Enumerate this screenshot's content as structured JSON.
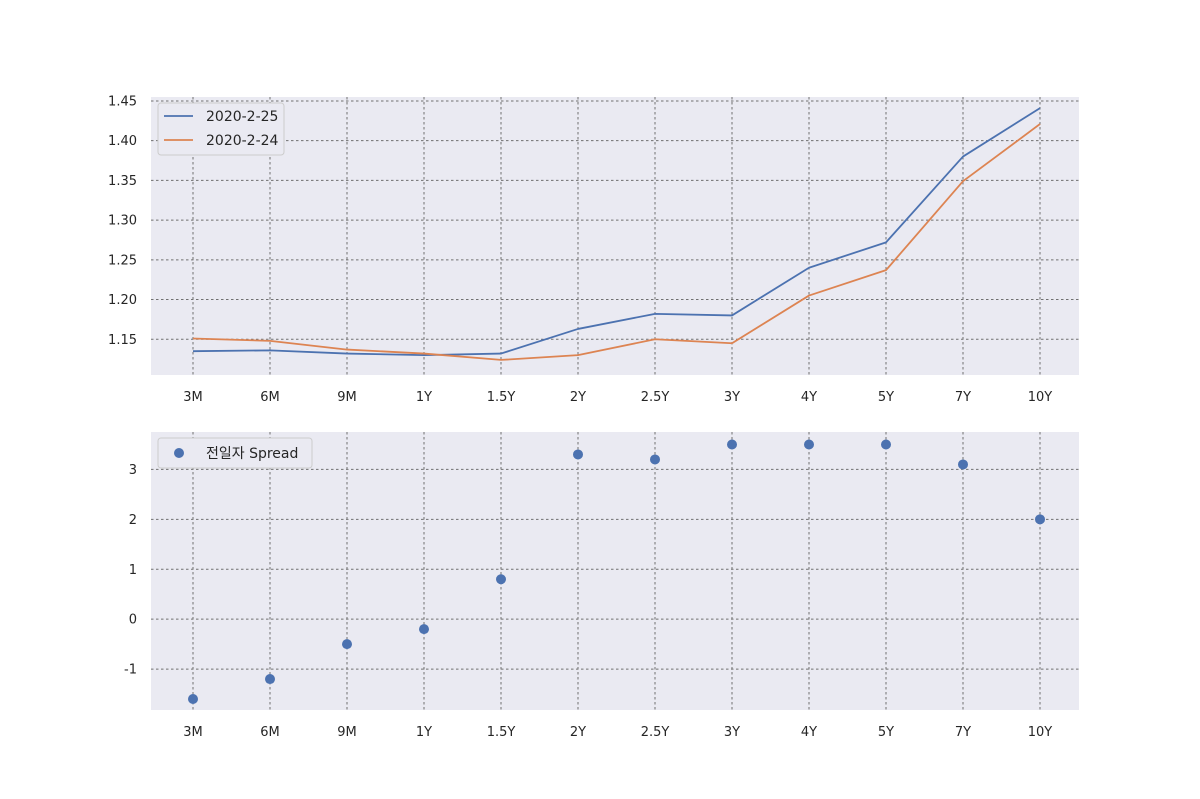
{
  "chart_data": [
    {
      "type": "line",
      "categories": [
        "3M",
        "6M",
        "9M",
        "1Y",
        "1.5Y",
        "2Y",
        "2.5Y",
        "3Y",
        "4Y",
        "5Y",
        "7Y",
        "10Y"
      ],
      "series": [
        {
          "name": "2020-2-25",
          "color": "#4c72b0",
          "values": [
            1.135,
            1.136,
            1.132,
            1.13,
            1.132,
            1.163,
            1.182,
            1.18,
            1.24,
            1.272,
            1.38,
            1.441
          ]
        },
        {
          "name": "2020-2-24",
          "color": "#dd8452",
          "values": [
            1.151,
            1.148,
            1.137,
            1.132,
            1.124,
            1.13,
            1.15,
            1.145,
            1.205,
            1.237,
            1.349,
            1.421
          ]
        }
      ],
      "ylim": [
        1.105,
        1.455
      ],
      "yticks": [
        1.15,
        1.2,
        1.25,
        1.3,
        1.35,
        1.4,
        1.45
      ],
      "ytick_labels": [
        "1.15",
        "1.20",
        "1.25",
        "1.30",
        "1.35",
        "1.40",
        "1.45"
      ],
      "grid": true,
      "legend": "upper-left"
    },
    {
      "type": "scatter",
      "categories": [
        "3M",
        "6M",
        "9M",
        "1Y",
        "1.5Y",
        "2Y",
        "2.5Y",
        "3Y",
        "4Y",
        "5Y",
        "7Y",
        "10Y"
      ],
      "series": [
        {
          "name": "전일자 Spread",
          "color": "#4c72b0",
          "values": [
            -1.6,
            -1.2,
            -0.5,
            -0.2,
            0.8,
            3.3,
            3.2,
            3.5,
            3.5,
            3.5,
            3.1,
            2.0
          ]
        }
      ],
      "ylim": [
        -1.82,
        3.75
      ],
      "yticks": [
        -1,
        0,
        1,
        2,
        3
      ],
      "ytick_labels": [
        "-1",
        "0",
        "1",
        "2",
        "3"
      ],
      "grid": true,
      "legend": "upper-left"
    }
  ]
}
